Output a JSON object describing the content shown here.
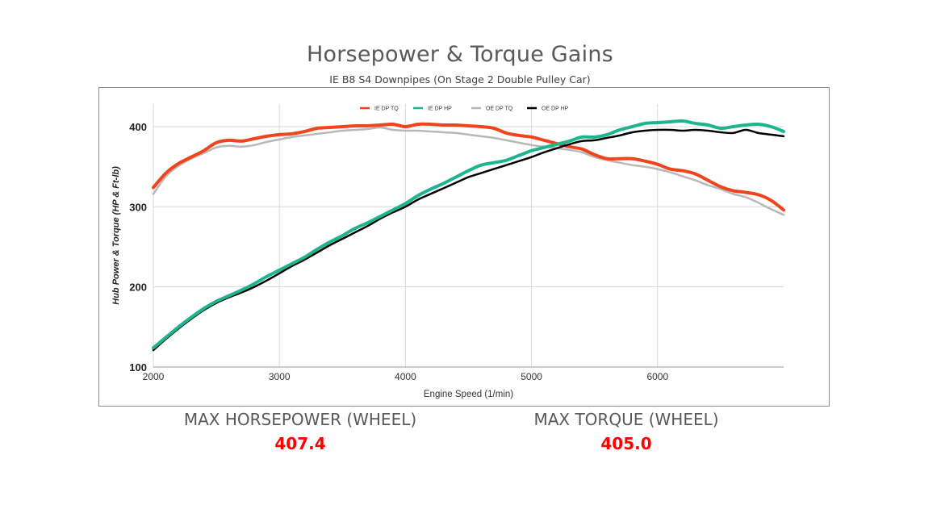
{
  "title": "Horsepower & Torque Gains",
  "subtitle": "IE B8 S4 Downpipes (On Stage 2 Double Pulley Car)",
  "stats": {
    "hp_label": "MAX HORSEPOWER (WHEEL)",
    "hp_value": "407.4",
    "tq_label": "MAX TORQUE (WHEEL)",
    "tq_value": "405.0",
    "value_color": "#ff0000"
  },
  "chart_data": {
    "type": "line",
    "xlabel": "Engine Speed (1/min)",
    "ylabel": "Hub Power & Torque (HP & Ft-lb)",
    "xlim": [
      2000,
      7000
    ],
    "ylim": [
      100,
      430
    ],
    "xticks": [
      2000,
      3000,
      4000,
      5000,
      6000
    ],
    "yticks": [
      100,
      200,
      300,
      400
    ],
    "grid": true,
    "legend_position": "top-center",
    "x": [
      2000,
      2100,
      2200,
      2300,
      2400,
      2500,
      2600,
      2700,
      2800,
      2900,
      3000,
      3100,
      3200,
      3300,
      3400,
      3500,
      3600,
      3700,
      3800,
      3900,
      4000,
      4100,
      4200,
      4300,
      4400,
      4500,
      4600,
      4700,
      4800,
      4900,
      5000,
      5100,
      5200,
      5300,
      5400,
      5500,
      5600,
      5700,
      5800,
      5900,
      6000,
      6100,
      6200,
      6300,
      6400,
      6500,
      6600,
      6700,
      6800,
      6900,
      7000
    ],
    "series": [
      {
        "name": "IE DP TQ",
        "color": "#f0441c",
        "width": 4,
        "values": [
          324,
          342,
          354,
          362,
          370,
          380,
          383,
          382,
          385,
          388,
          390,
          391,
          394,
          398,
          399,
          400,
          401,
          401,
          402,
          403,
          400,
          403,
          403,
          402,
          402,
          401,
          400,
          398,
          392,
          389,
          387,
          383,
          379,
          375,
          372,
          365,
          360,
          360,
          360,
          357,
          353,
          347,
          345,
          341,
          333,
          325,
          320,
          318,
          315,
          308,
          296
        ]
      },
      {
        "name": "IE DP HP",
        "color": "#1db48e",
        "width": 4,
        "values": [
          124,
          137,
          150,
          162,
          173,
          182,
          189,
          196,
          204,
          213,
          221,
          229,
          237,
          247,
          256,
          264,
          273,
          280,
          288,
          296,
          304,
          314,
          322,
          329,
          337,
          345,
          352,
          355,
          358,
          364,
          370,
          374,
          378,
          382,
          387,
          387,
          390,
          396,
          400,
          404,
          405,
          406,
          407,
          404,
          402,
          398,
          400,
          402,
          403,
          400,
          394
        ]
      },
      {
        "name": "OE DP TQ",
        "color": "#b8b8b8",
        "width": 2.5,
        "values": [
          316,
          338,
          351,
          360,
          367,
          374,
          376,
          375,
          377,
          381,
          384,
          387,
          389,
          391,
          393,
          395,
          396,
          397,
          399,
          396,
          395,
          395,
          394,
          393,
          392,
          390,
          388,
          386,
          383,
          380,
          377,
          375,
          373,
          371,
          368,
          362,
          358,
          355,
          352,
          350,
          347,
          343,
          338,
          333,
          327,
          322,
          316,
          312,
          305,
          297,
          290
        ]
      },
      {
        "name": "OE DP HP",
        "color": "#000000",
        "width": 2.5,
        "values": [
          121,
          135,
          148,
          160,
          171,
          180,
          187,
          193,
          200,
          208,
          217,
          226,
          234,
          243,
          252,
          260,
          268,
          276,
          285,
          293,
          300,
          309,
          316,
          323,
          330,
          337,
          342,
          347,
          352,
          357,
          362,
          368,
          373,
          378,
          382,
          383,
          386,
          389,
          393,
          395,
          396,
          396,
          395,
          396,
          395,
          393,
          392,
          396,
          392,
          390,
          388
        ]
      }
    ]
  }
}
